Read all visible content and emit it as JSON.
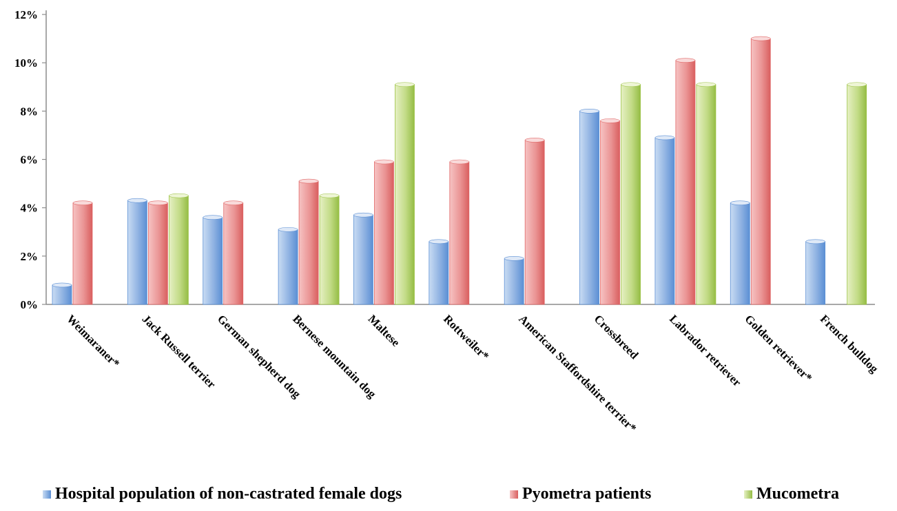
{
  "chart_data": {
    "type": "bar",
    "categories": [
      "Weimaraner*",
      "Jack Russell terrier",
      "German shepherd dog",
      "Bernese mountain dog",
      "Maltese",
      "Rottweiler*",
      "American Staffordshire terrier*",
      "Crossbreed",
      "Labrador retriever",
      "Golden retriever*",
      "French bulldog"
    ],
    "series": [
      {
        "name": "Hospital population of non-castrated female dogs",
        "color": "#5b8fd4",
        "values": [
          0.8,
          4.3,
          3.6,
          3.1,
          3.7,
          2.6,
          1.9,
          8.0,
          6.9,
          4.2,
          2.6
        ]
      },
      {
        "name": "Pyometra patients",
        "color": "#e06666",
        "values": [
          4.2,
          4.2,
          4.2,
          5.1,
          5.9,
          5.9,
          6.8,
          7.6,
          10.1,
          11.0,
          null
        ]
      },
      {
        "name": "Mucometra",
        "color": "#9bc243",
        "values": [
          null,
          4.5,
          null,
          4.5,
          9.1,
          null,
          null,
          9.1,
          9.1,
          null,
          9.1
        ]
      }
    ],
    "yticks": [
      "0%",
      "2%",
      "4%",
      "6%",
      "8%",
      "10%",
      "12%"
    ],
    "ylim": [
      0,
      12
    ],
    "grid": false,
    "legend_position": "bottom"
  }
}
